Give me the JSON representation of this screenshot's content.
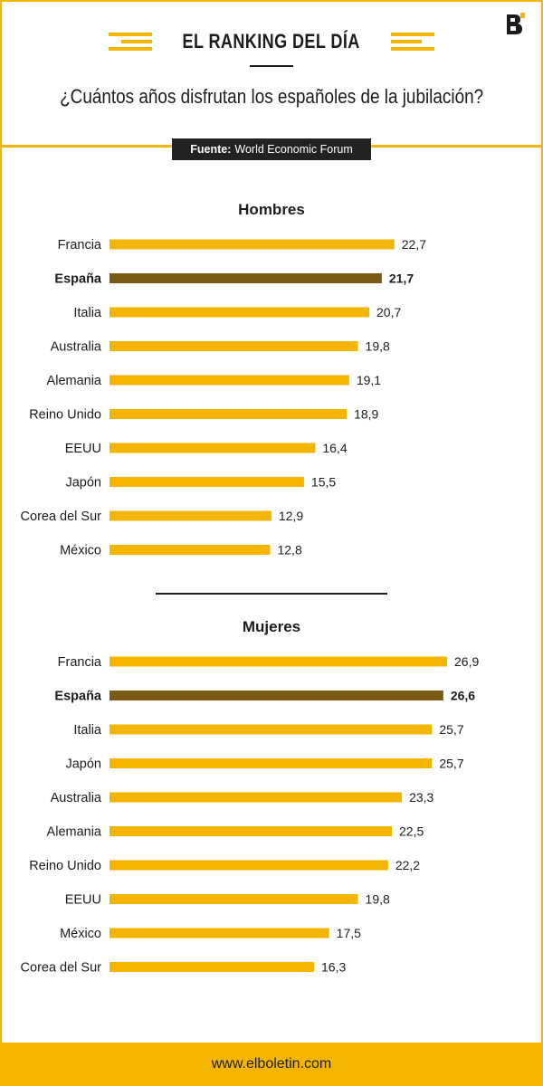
{
  "header": {
    "banner": "EL RANKING DEL DÍA",
    "question": "¿Cuántos años disfrutan los españoles de la jubilación?",
    "source_label": "Fuente:",
    "source_value": "World Economic Forum"
  },
  "footer": {
    "url": "www.elboletin.com"
  },
  "colors": {
    "accent": "#f4b500",
    "highlight": "#7a5a14",
    "text": "#1c1c1c"
  },
  "chart_data": [
    {
      "type": "bar",
      "orientation": "horizontal",
      "title": "Hombres",
      "categories": [
        "Francia",
        "España",
        "Italia",
        "Australia",
        "Alemania",
        "Reino Unido",
        "EEUU",
        "Japón",
        "Corea del Sur",
        "México"
      ],
      "values": [
        22.7,
        21.7,
        20.7,
        19.8,
        19.1,
        18.9,
        16.4,
        15.5,
        12.9,
        12.8
      ],
      "value_labels": [
        "22,7",
        "21,7",
        "20,7",
        "19,8",
        "19,1",
        "18,9",
        "16,4",
        "15,5",
        "12,9",
        "12,8"
      ],
      "highlight": "España",
      "xlim": [
        0,
        26.9
      ]
    },
    {
      "type": "bar",
      "orientation": "horizontal",
      "title": "Mujeres",
      "categories": [
        "Francia",
        "España",
        "Italia",
        "Japón",
        "Australia",
        "Alemania",
        "Reino Unido",
        "EEUU",
        "México",
        "Corea del Sur"
      ],
      "values": [
        26.9,
        26.6,
        25.7,
        25.7,
        23.3,
        22.5,
        22.2,
        19.8,
        17.5,
        16.3
      ],
      "value_labels": [
        "26,9",
        "26,6",
        "25,7",
        "25,7",
        "23,3",
        "22,5",
        "22,2",
        "19,8",
        "17,5",
        "16,3"
      ],
      "highlight": "España",
      "xlim": [
        0,
        26.9
      ]
    }
  ]
}
